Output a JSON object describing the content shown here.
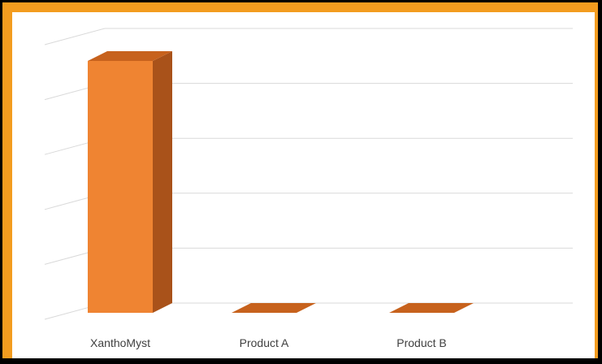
{
  "chart_data": {
    "type": "bar",
    "style": "3d-column",
    "categories": [
      "XanthoMyst",
      "Product A",
      "Product B"
    ],
    "values": [
      100,
      0,
      0
    ],
    "title": "",
    "xlabel": "",
    "ylabel": "",
    "ylim": [
      0,
      100
    ],
    "gridlines": 6,
    "grid": true,
    "show_tick_labels": false
  },
  "colors": {
    "frame": "#f39c1f",
    "background": "#ffffff",
    "bar_front": "#ef8432",
    "bar_top": "#c7621d",
    "bar_side": "#a9521a",
    "grid": "#d9d9d9",
    "label": "#404040"
  }
}
